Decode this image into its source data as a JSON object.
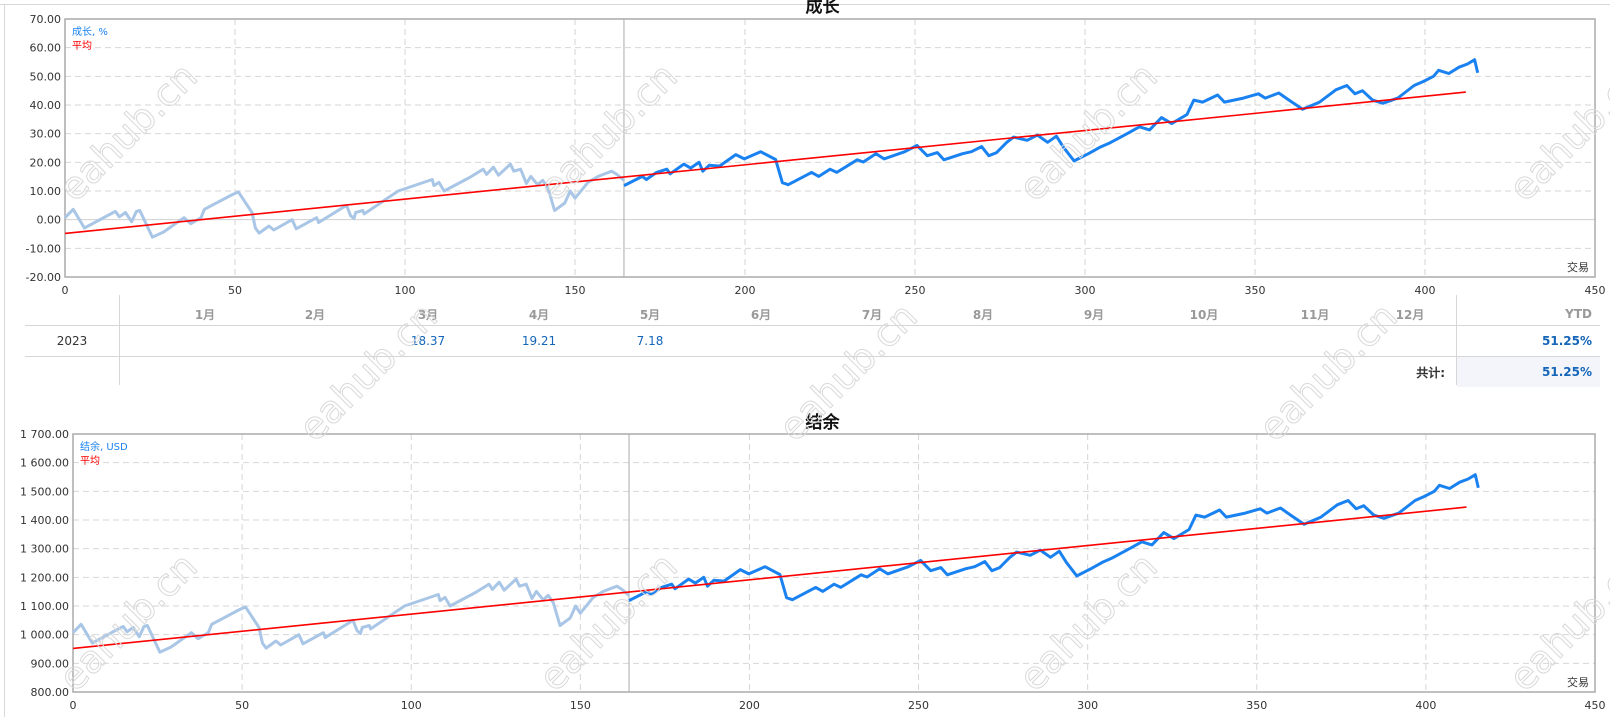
{
  "watermark": "eahub.cn",
  "colors": {
    "history": "#a9c6e6",
    "series": "#1a82f0",
    "average": "#ff0000",
    "grid": "#d6d6d6"
  },
  "chart_data": [
    {
      "type": "line",
      "title": "成长",
      "xlabel": "交易",
      "xlim": [
        0,
        450
      ],
      "ylim": [
        -20,
        70
      ],
      "xticks": [
        0,
        50,
        100,
        150,
        200,
        250,
        300,
        350,
        400,
        450
      ],
      "yticks": [
        -20,
        -10,
        0,
        10,
        20,
        30,
        40,
        50,
        60,
        70
      ],
      "ytick_labels": [
        "-20.00",
        "-10.00",
        "0.00",
        "10.00",
        "20.00",
        "30.00",
        "40.00",
        "50.00",
        "60.00",
        "70.00"
      ],
      "grid": true,
      "legend": {
        "placement": "top-left",
        "series_label": "成长, %",
        "average_label": "平均"
      },
      "split_x": 164.4,
      "points": [
        [
          0,
          0.7
        ],
        [
          2.4,
          3.6
        ],
        [
          5.7,
          -2.9
        ],
        [
          14.8,
          2.9
        ],
        [
          16,
          1
        ],
        [
          17.8,
          2.5
        ],
        [
          19.6,
          -0.7
        ],
        [
          21,
          2.9
        ],
        [
          22,
          3.2
        ],
        [
          25.7,
          -6.1
        ],
        [
          29,
          -4.3
        ],
        [
          35,
          0.7
        ],
        [
          37,
          -1.4
        ],
        [
          40,
          0.7
        ],
        [
          41,
          3.6
        ],
        [
          49,
          8.6
        ],
        [
          51,
          9.7
        ],
        [
          55,
          2.5
        ],
        [
          56,
          -2.9
        ],
        [
          57.1,
          -4.7
        ],
        [
          60,
          -2.2
        ],
        [
          61.4,
          -3.6
        ],
        [
          66.8,
          0
        ],
        [
          68,
          -3.2
        ],
        [
          74,
          0.7
        ],
        [
          74.6,
          -1
        ],
        [
          82.8,
          5
        ],
        [
          84,
          1.4
        ],
        [
          85,
          0.4
        ],
        [
          85.5,
          2.5
        ],
        [
          87.6,
          3.2
        ],
        [
          88,
          2
        ],
        [
          98,
          10
        ],
        [
          108,
          14
        ],
        [
          108.5,
          11.9
        ],
        [
          110,
          13
        ],
        [
          111.5,
          10
        ],
        [
          119,
          14.7
        ],
        [
          123,
          17.6
        ],
        [
          124,
          15.8
        ],
        [
          126,
          18.3
        ],
        [
          127.5,
          15.5
        ],
        [
          131,
          19.4
        ],
        [
          132,
          16.9
        ],
        [
          134,
          17.6
        ],
        [
          135.7,
          12.6
        ],
        [
          137,
          15.1
        ],
        [
          139,
          12.2
        ],
        [
          140.5,
          13.7
        ],
        [
          142,
          11.2
        ],
        [
          144,
          3.2
        ],
        [
          147,
          5.8
        ],
        [
          148.6,
          10
        ],
        [
          150,
          7.5
        ],
        [
          152,
          10.4
        ],
        [
          153.8,
          13
        ],
        [
          156.8,
          15.1
        ],
        [
          160.8,
          16.9
        ],
        [
          162.3,
          15.8
        ],
        [
          164.4,
          13.7
        ],
        [
          164.4,
          11.9
        ],
        [
          169.8,
          15.1
        ],
        [
          171,
          14
        ],
        [
          174,
          16.5
        ],
        [
          177,
          17.6
        ],
        [
          178,
          16
        ],
        [
          182,
          19.4
        ],
        [
          184,
          18
        ],
        [
          186.5,
          20
        ],
        [
          187.6,
          16.9
        ],
        [
          189.5,
          19
        ],
        [
          192.5,
          18.7
        ],
        [
          197.3,
          22.7
        ],
        [
          199.8,
          21.2
        ],
        [
          204.6,
          23.7
        ],
        [
          209,
          21
        ],
        [
          211,
          12.9
        ],
        [
          212.7,
          12.2
        ],
        [
          219.6,
          16.5
        ],
        [
          221.7,
          15.1
        ],
        [
          225,
          17.6
        ],
        [
          227,
          16.5
        ],
        [
          233,
          20.9
        ],
        [
          234.8,
          20.1
        ],
        [
          238.5,
          23
        ],
        [
          240.9,
          21.2
        ],
        [
          247,
          23.7
        ],
        [
          250.6,
          25.9
        ],
        [
          253.6,
          22.3
        ],
        [
          256.6,
          23.4
        ],
        [
          258.5,
          20.9
        ],
        [
          264,
          23
        ],
        [
          266.6,
          23.7
        ],
        [
          269.6,
          25.5
        ],
        [
          271.7,
          22.3
        ],
        [
          274,
          23.4
        ],
        [
          277,
          27
        ],
        [
          279,
          28.8
        ],
        [
          283,
          27.7
        ],
        [
          286,
          29.5
        ],
        [
          289,
          27
        ],
        [
          291.6,
          29.1
        ],
        [
          293.7,
          25.2
        ],
        [
          296.8,
          20.5
        ],
        [
          301,
          23
        ],
        [
          304.3,
          25.2
        ],
        [
          307,
          26.6
        ],
        [
          312.7,
          30.2
        ],
        [
          316,
          32.4
        ],
        [
          319,
          31.3
        ],
        [
          322.5,
          35.6
        ],
        [
          325.5,
          33.5
        ],
        [
          330,
          36.7
        ],
        [
          332,
          41.7
        ],
        [
          334.6,
          41
        ],
        [
          339,
          43.5
        ],
        [
          341,
          41
        ],
        [
          346.6,
          42.4
        ],
        [
          351,
          43.9
        ],
        [
          353,
          42.4
        ],
        [
          357,
          44.2
        ],
        [
          360,
          41.7
        ],
        [
          364,
          38.5
        ],
        [
          369,
          41
        ],
        [
          373.8,
          45.3
        ],
        [
          377,
          46.8
        ],
        [
          379.4,
          43.9
        ],
        [
          381.6,
          45
        ],
        [
          384.6,
          41.7
        ],
        [
          387.6,
          40.6
        ],
        [
          392,
          42.4
        ],
        [
          396.8,
          46.8
        ],
        [
          399.5,
          48.2
        ],
        [
          402.5,
          50
        ],
        [
          404,
          52.1
        ],
        [
          407,
          51
        ],
        [
          410,
          53.2
        ],
        [
          412.5,
          54.3
        ],
        [
          414.6,
          55.8
        ],
        [
          415.5,
          51.25
        ]
      ],
      "average": [
        [
          0,
          -4.8
        ],
        [
          412,
          44.5
        ]
      ]
    },
    {
      "type": "line",
      "title": "结余",
      "xlabel": "交易",
      "xlim": [
        0,
        450
      ],
      "ylim": [
        800,
        1700
      ],
      "xticks": [
        0,
        50,
        100,
        150,
        200,
        250,
        300,
        350,
        400,
        450
      ],
      "yticks": [
        800,
        900,
        1000,
        1100,
        1200,
        1300,
        1400,
        1500,
        1600,
        1700
      ],
      "ytick_labels": [
        "800.00",
        "900.00",
        "1 000.00",
        "1 100.00",
        "1 200.00",
        "1 300.00",
        "1 400.00",
        "1 500.00",
        "1 600.00",
        "1 700.00"
      ],
      "grid": true,
      "legend": {
        "placement": "top-left",
        "series_label": "结余, USD",
        "average_label": "平均"
      },
      "split_x": 164.4,
      "points": [
        [
          0,
          1007
        ],
        [
          2.4,
          1036
        ],
        [
          5.7,
          971
        ],
        [
          14.8,
          1029
        ],
        [
          16,
          1010
        ],
        [
          17.8,
          1025
        ],
        [
          19.6,
          993
        ],
        [
          21,
          1029
        ],
        [
          22,
          1032
        ],
        [
          25.7,
          939
        ],
        [
          29,
          957
        ],
        [
          35,
          1007
        ],
        [
          37,
          986
        ],
        [
          40,
          1007
        ],
        [
          41,
          1036
        ],
        [
          49,
          1086
        ],
        [
          51,
          1097
        ],
        [
          55,
          1025
        ],
        [
          56,
          971
        ],
        [
          57.1,
          953
        ],
        [
          60,
          978
        ],
        [
          61.4,
          964
        ],
        [
          66.8,
          1000
        ],
        [
          68,
          968
        ],
        [
          74,
          1007
        ],
        [
          74.6,
          990
        ],
        [
          82.8,
          1050
        ],
        [
          84,
          1014
        ],
        [
          85,
          1004
        ],
        [
          85.5,
          1025
        ],
        [
          87.6,
          1032
        ],
        [
          88,
          1020
        ],
        [
          98,
          1100
        ],
        [
          108,
          1140
        ],
        [
          108.5,
          1119
        ],
        [
          110,
          1130
        ],
        [
          111.5,
          1100
        ],
        [
          119,
          1147
        ],
        [
          123,
          1176
        ],
        [
          124,
          1158
        ],
        [
          126,
          1183
        ],
        [
          127.5,
          1155
        ],
        [
          131,
          1194
        ],
        [
          132,
          1169
        ],
        [
          134,
          1176
        ],
        [
          135.7,
          1126
        ],
        [
          137,
          1151
        ],
        [
          139,
          1122
        ],
        [
          140.5,
          1137
        ],
        [
          142,
          1112
        ],
        [
          144,
          1032
        ],
        [
          147,
          1058
        ],
        [
          148.6,
          1100
        ],
        [
          150,
          1075
        ],
        [
          152,
          1104
        ],
        [
          153.8,
          1130
        ],
        [
          156.8,
          1151
        ],
        [
          160.8,
          1169
        ],
        [
          162.3,
          1158
        ],
        [
          164.4,
          1137
        ],
        [
          164.4,
          1119
        ],
        [
          169.8,
          1151
        ],
        [
          171,
          1140
        ],
        [
          174,
          1165
        ],
        [
          177,
          1176
        ],
        [
          178,
          1160
        ],
        [
          182,
          1194
        ],
        [
          184,
          1180
        ],
        [
          186.5,
          1200
        ],
        [
          187.6,
          1169
        ],
        [
          189.5,
          1190
        ],
        [
          192.5,
          1187
        ],
        [
          197.3,
          1227
        ],
        [
          199.8,
          1212
        ],
        [
          204.6,
          1237
        ],
        [
          209,
          1210
        ],
        [
          211,
          1129
        ],
        [
          212.7,
          1122
        ],
        [
          219.6,
          1165
        ],
        [
          221.7,
          1151
        ],
        [
          225,
          1176
        ],
        [
          227,
          1165
        ],
        [
          233,
          1209
        ],
        [
          234.8,
          1201
        ],
        [
          238.5,
          1230
        ],
        [
          240.9,
          1212
        ],
        [
          247,
          1237
        ],
        [
          250.6,
          1259
        ],
        [
          253.6,
          1223
        ],
        [
          256.6,
          1234
        ],
        [
          258.5,
          1209
        ],
        [
          264,
          1230
        ],
        [
          266.6,
          1237
        ],
        [
          269.6,
          1255
        ],
        [
          271.7,
          1223
        ],
        [
          274,
          1234
        ],
        [
          277,
          1270
        ],
        [
          279,
          1288
        ],
        [
          283,
          1277
        ],
        [
          286,
          1295
        ],
        [
          289,
          1270
        ],
        [
          291.6,
          1291
        ],
        [
          293.7,
          1252
        ],
        [
          296.8,
          1205
        ],
        [
          301,
          1230
        ],
        [
          304.3,
          1252
        ],
        [
          307,
          1266
        ],
        [
          312.7,
          1302
        ],
        [
          316,
          1324
        ],
        [
          319,
          1313
        ],
        [
          322.5,
          1356
        ],
        [
          325.5,
          1335
        ],
        [
          330,
          1367
        ],
        [
          332,
          1417
        ],
        [
          334.6,
          1410
        ],
        [
          339,
          1435
        ],
        [
          341,
          1410
        ],
        [
          346.6,
          1424
        ],
        [
          351,
          1439
        ],
        [
          353,
          1424
        ],
        [
          357,
          1442
        ],
        [
          360,
          1417
        ],
        [
          364,
          1385
        ],
        [
          369,
          1410
        ],
        [
          373.8,
          1453
        ],
        [
          377,
          1468
        ],
        [
          379.4,
          1439
        ],
        [
          381.6,
          1450
        ],
        [
          384.6,
          1417
        ],
        [
          387.6,
          1406
        ],
        [
          392,
          1424
        ],
        [
          396.8,
          1468
        ],
        [
          399.5,
          1482
        ],
        [
          402.5,
          1500
        ],
        [
          404,
          1521
        ],
        [
          407,
          1510
        ],
        [
          410,
          1532
        ],
        [
          412.5,
          1543
        ],
        [
          414.6,
          1558
        ],
        [
          415.5,
          1512.5
        ]
      ],
      "average": [
        [
          0,
          952
        ],
        [
          412,
          1445
        ]
      ]
    }
  ],
  "table": {
    "months": [
      "1月",
      "2月",
      "3月",
      "4月",
      "5月",
      "6月",
      "7月",
      "8月",
      "9月",
      "10月",
      "11月",
      "12月"
    ],
    "ytd_label": "YTD",
    "rows": [
      {
        "year": "2023",
        "values": [
          "",
          "",
          "18.37",
          "19.21",
          "7.18",
          "",
          "",
          "",
          "",
          "",
          "",
          ""
        ],
        "ytd": "51.25%"
      }
    ],
    "total_label": "共计:",
    "total_value": "51.25%"
  }
}
